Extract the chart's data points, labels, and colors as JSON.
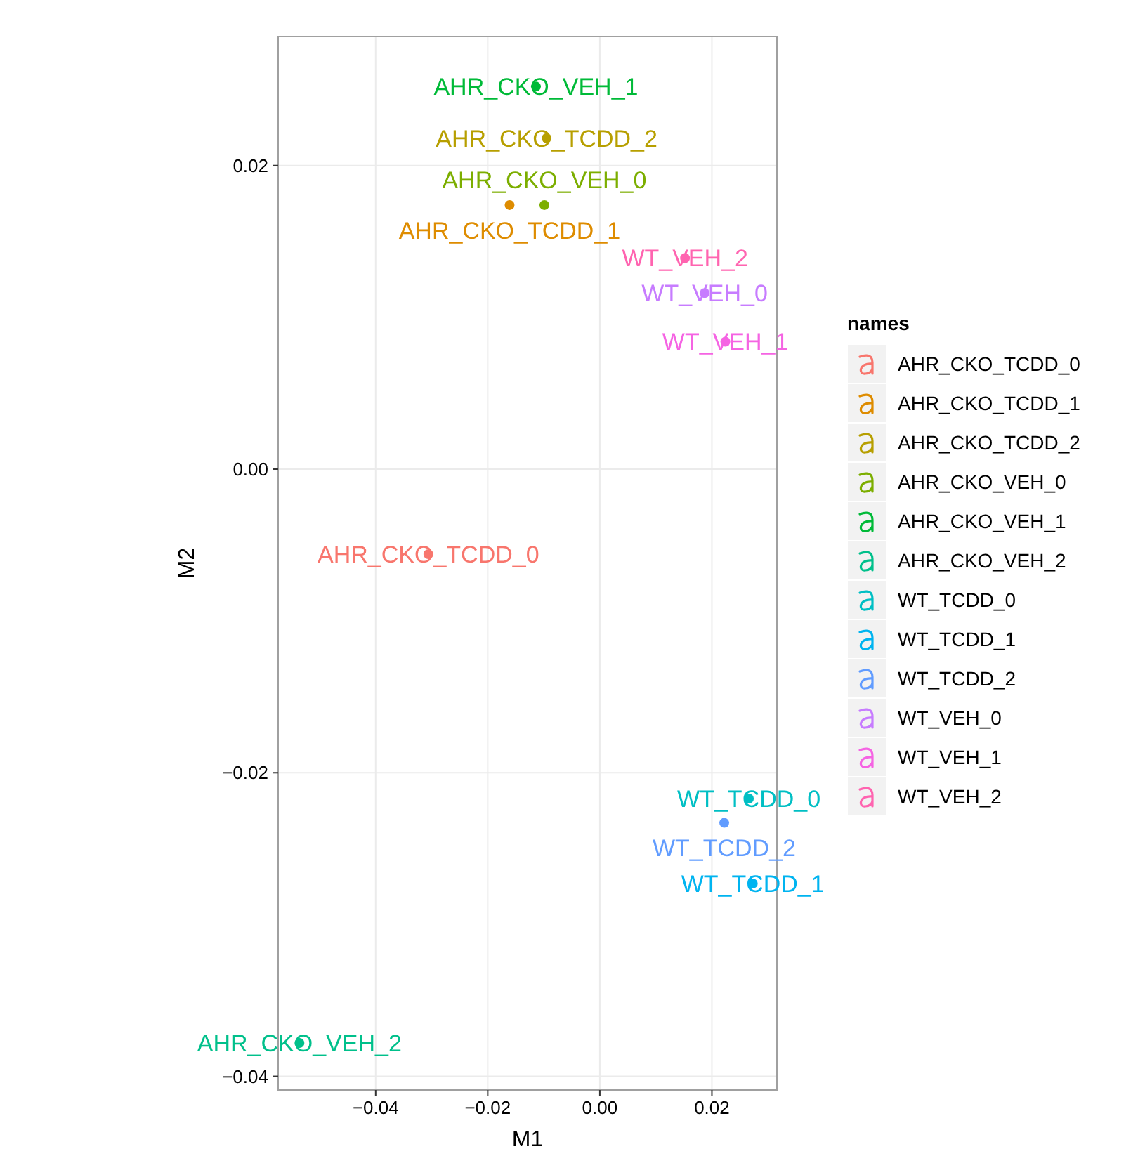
{
  "chart_data": {
    "type": "scatter",
    "xlabel": "M1",
    "ylabel": "M2",
    "legend_title": "names",
    "legend": "right",
    "grid": true,
    "marker": "circle",
    "xlim": [
      -0.0574,
      0.0316
    ],
    "ylim": [
      -0.0409,
      0.0285
    ],
    "xticks": [
      {
        "value": -0.04,
        "label": "−0.04"
      },
      {
        "value": -0.02,
        "label": "−0.02"
      },
      {
        "value": 0,
        "label": "0.00"
      },
      {
        "value": 0.02,
        "label": "0.02"
      }
    ],
    "yticks": [
      {
        "value": -0.04,
        "label": "−0.04"
      },
      {
        "value": -0.02,
        "label": "−0.02"
      },
      {
        "value": 0,
        "label": "0.00"
      },
      {
        "value": 0.02,
        "label": "0.02"
      }
    ],
    "series": [
      {
        "name": "AHR_CKO_TCDD_0",
        "color": "#F8766D",
        "x": [
          -0.0306
        ],
        "values": [
          -0.0056
        ]
      },
      {
        "name": "AHR_CKO_TCDD_1",
        "color": "#DE8C00",
        "x": [
          -0.0161
        ],
        "values": [
          0.0174
        ]
      },
      {
        "name": "AHR_CKO_TCDD_2",
        "color": "#B79F00",
        "x": [
          -0.0095
        ],
        "values": [
          0.0218
        ]
      },
      {
        "name": "AHR_CKO_VEH_0",
        "color": "#7CAE00",
        "x": [
          -0.0099
        ],
        "values": [
          0.0174
        ]
      },
      {
        "name": "AHR_CKO_VEH_1",
        "color": "#00BA38",
        "x": [
          -0.0114
        ],
        "values": [
          0.0252
        ]
      },
      {
        "name": "AHR_CKO_VEH_2",
        "color": "#00C08B",
        "x": [
          -0.0536
        ],
        "values": [
          -0.0378
        ]
      },
      {
        "name": "WT_TCDD_0",
        "color": "#00BFC4",
        "x": [
          0.0266
        ],
        "values": [
          -0.0217
        ]
      },
      {
        "name": "WT_TCDD_1",
        "color": "#00B4F0",
        "x": [
          0.0273
        ],
        "values": [
          -0.0273
        ]
      },
      {
        "name": "WT_TCDD_2",
        "color": "#619CFF",
        "x": [
          0.0222
        ],
        "values": [
          -0.0233
        ]
      },
      {
        "name": "WT_VEH_0",
        "color": "#C77CFF",
        "x": [
          0.0187
        ],
        "values": [
          0.0116
        ]
      },
      {
        "name": "WT_VEH_1",
        "color": "#F564E3",
        "x": [
          0.0224
        ],
        "values": [
          0.0084
        ]
      },
      {
        "name": "WT_VEH_2",
        "color": "#FF64B0",
        "x": [
          0.0152
        ],
        "values": [
          0.0139
        ]
      }
    ]
  }
}
